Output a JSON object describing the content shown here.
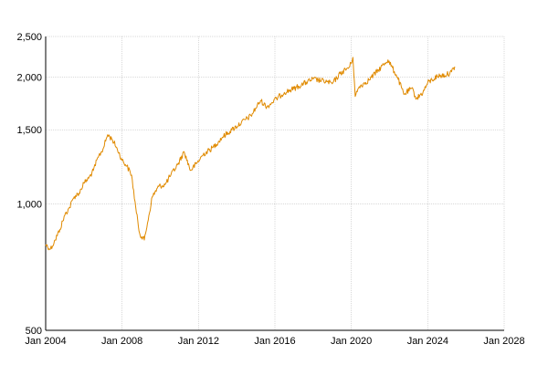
{
  "chart_data": {
    "type": "line",
    "title": "",
    "xlabel": "",
    "ylabel": "",
    "y_scale": "log",
    "xlim": [
      "2004-01-01",
      "2028-01-01"
    ],
    "ylim": [
      500,
      2500
    ],
    "x_ticks": [
      "2004-01-01",
      "2008-01-01",
      "2012-01-01",
      "2016-01-01",
      "2020-01-01",
      "2024-01-01",
      "2028-01-01"
    ],
    "x_tick_labels": [
      "Jan 2004",
      "Jan 2008",
      "Jan 2012",
      "Jan 2016",
      "Jan 2020",
      "Jan 2024",
      "Jan 2028"
    ],
    "y_ticks": [
      500,
      1000,
      1500,
      2000,
      2500
    ],
    "y_tick_labels": [
      "500",
      "1,000",
      "1,500",
      "2,000",
      "2,500"
    ],
    "grid": true,
    "colors": {
      "line": "#e08a00",
      "grid": "#b3b3b3",
      "axis": "#000000"
    },
    "series": [
      {
        "x": [
          "2004-01-01",
          "2004-04-01",
          "2004-07-01",
          "2004-10-01",
          "2005-01-01",
          "2005-04-01",
          "2005-07-01",
          "2005-10-01",
          "2006-01-01",
          "2006-04-01",
          "2006-07-01",
          "2006-10-01",
          "2007-01-01",
          "2007-04-01",
          "2007-07-01",
          "2007-10-01",
          "2008-01-01",
          "2008-04-01",
          "2008-07-01",
          "2008-10-01",
          "2008-12-01",
          "2009-03-01",
          "2009-05-01",
          "2009-08-01",
          "2009-12-01",
          "2010-04-01",
          "2010-07-01",
          "2010-12-01",
          "2011-04-01",
          "2011-08-01",
          "2011-12-01",
          "2012-04-01",
          "2012-10-01",
          "2013-04-01",
          "2013-10-01",
          "2014-04-01",
          "2014-10-01",
          "2015-04-01",
          "2015-08-01",
          "2016-02-01",
          "2016-07-01",
          "2017-01-01",
          "2017-07-01",
          "2018-01-01",
          "2018-10-01",
          "2019-01-01",
          "2019-06-01",
          "2019-12-01",
          "2020-02-01",
          "2020-03-15",
          "2020-06-01",
          "2020-12-01",
          "2021-06-01",
          "2021-12-01",
          "2022-06-01",
          "2022-10-01",
          "2023-03-01",
          "2023-06-01",
          "2023-10-01",
          "2024-01-01",
          "2024-07-01",
          "2025-01-01",
          "2025-04-01",
          "2025-06-01"
        ],
        "y": [
          800,
          780,
          820,
          870,
          940,
          980,
          1040,
          1060,
          1120,
          1150,
          1200,
          1290,
          1350,
          1460,
          1420,
          1350,
          1270,
          1230,
          1170,
          950,
          850,
          820,
          900,
          1040,
          1100,
          1110,
          1160,
          1240,
          1330,
          1200,
          1250,
          1310,
          1360,
          1440,
          1500,
          1560,
          1620,
          1760,
          1700,
          1780,
          1840,
          1880,
          1930,
          1980,
          1950,
          1930,
          2040,
          2120,
          2230,
          1800,
          1900,
          1970,
          2080,
          2200,
          2000,
          1820,
          1880,
          1780,
          1840,
          1940,
          2010,
          2030,
          2060,
          2120
        ]
      }
    ]
  }
}
